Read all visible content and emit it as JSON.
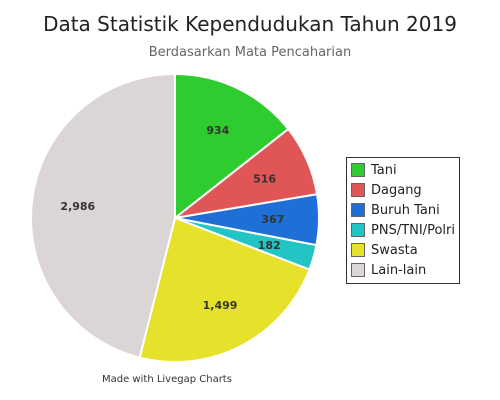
{
  "chart_data": {
    "type": "pie",
    "title": "Data Statistik Kependudukan Tahun 2019",
    "subtitle": "Berdasarkan Mata Pencaharian",
    "categories": [
      "Tani",
      "Dagang",
      "Buruh Tani",
      "PNS/TNI/Polri",
      "Swasta",
      "Lain-lain"
    ],
    "values": [
      934,
      516,
      367,
      182,
      1499,
      2986
    ],
    "value_labels": [
      "934",
      "516",
      "367",
      "182",
      "1,499",
      "2,986"
    ],
    "colors": [
      "#2ecc2e",
      "#e05555",
      "#1f6fd6",
      "#22c4c4",
      "#e6e22c",
      "#dcd5d5"
    ],
    "legend_position": "right",
    "start_angle": "top, clockwise"
  },
  "credit": "Made with Livegap Charts"
}
